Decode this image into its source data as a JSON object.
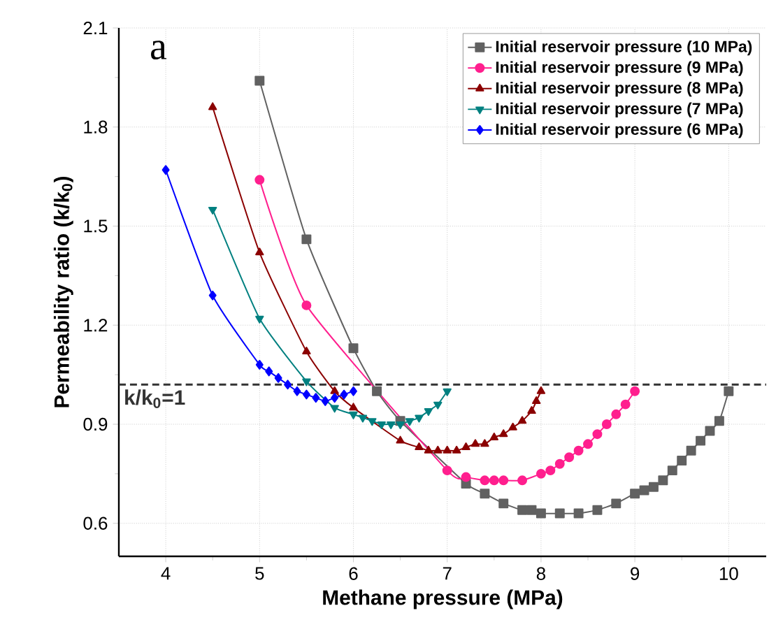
{
  "chart_data": {
    "type": "line",
    "xlabel": "Methane pressure (MPa)",
    "ylabel": "Permeability ratio (k/k$_{0}$)",
    "xlim": [
      3.5,
      10.4
    ],
    "ylim": [
      0.5,
      2.1
    ],
    "xticks": [
      4,
      5,
      6,
      7,
      8,
      9,
      10
    ],
    "yticks": [
      0.6,
      0.9,
      1.2,
      1.5,
      1.8,
      2.1
    ],
    "grid": true,
    "legend": "top right",
    "annotations": [
      "a"
    ],
    "ref_lines": [
      {
        "axis": "y",
        "value": 1.02,
        "label": "k/k$_{0}$=1",
        "color": "#333333",
        "line_style": "dashed"
      }
    ],
    "series": [
      {
        "name": "Initial reservoir pressure (10 MPa)",
        "color": "#616161",
        "marker": "square",
        "x": [
          5,
          5.5,
          6,
          6.25,
          6.5,
          7.2,
          7.4,
          7.6,
          7.8,
          7.9,
          8.0,
          8.2,
          8.4,
          8.6,
          8.8,
          9.0,
          9.1,
          9.2,
          9.3,
          9.4,
          9.5,
          9.6,
          9.7,
          9.8,
          9.9,
          10.0
        ],
        "values": [
          1.94,
          1.46,
          1.13,
          1.0,
          0.91,
          0.72,
          0.69,
          0.66,
          0.64,
          0.64,
          0.63,
          0.63,
          0.63,
          0.64,
          0.66,
          0.69,
          0.7,
          0.71,
          0.73,
          0.76,
          0.79,
          0.82,
          0.85,
          0.88,
          0.91,
          1.0
        ]
      },
      {
        "name": "Initial reservoir pressure (9 MPa)",
        "color": "#ff1f8e",
        "marker": "circle",
        "x": [
          5,
          5.5,
          7.0,
          7.2,
          7.4,
          7.5,
          7.6,
          7.8,
          8.0,
          8.1,
          8.2,
          8.3,
          8.4,
          8.5,
          8.6,
          8.7,
          8.8,
          8.9,
          9.0
        ],
        "values": [
          1.64,
          1.26,
          0.76,
          0.74,
          0.73,
          0.73,
          0.73,
          0.73,
          0.75,
          0.76,
          0.78,
          0.8,
          0.82,
          0.84,
          0.87,
          0.9,
          0.93,
          0.96,
          1.0
        ]
      },
      {
        "name": "Initial reservoir pressure (8 MPa)",
        "color": "#8b0000",
        "marker": "triangle",
        "x": [
          4.5,
          5.0,
          5.5,
          5.8,
          6.0,
          6.5,
          6.7,
          6.8,
          6.9,
          7.0,
          7.1,
          7.2,
          7.3,
          7.4,
          7.5,
          7.6,
          7.7,
          7.8,
          7.9,
          7.95,
          8.0
        ],
        "values": [
          1.86,
          1.42,
          1.12,
          1.0,
          0.95,
          0.85,
          0.83,
          0.82,
          0.82,
          0.82,
          0.82,
          0.83,
          0.84,
          0.84,
          0.86,
          0.87,
          0.89,
          0.91,
          0.94,
          0.97,
          1.0
        ]
      },
      {
        "name": "Initial reservoir pressure (7 MPa)",
        "color": "#008080",
        "marker": "triangle-down",
        "x": [
          4.5,
          5.0,
          5.5,
          5.8,
          6.0,
          6.1,
          6.2,
          6.3,
          6.4,
          6.5,
          6.6,
          6.7,
          6.8,
          6.9,
          7.0
        ],
        "values": [
          1.55,
          1.22,
          1.03,
          0.95,
          0.93,
          0.92,
          0.91,
          0.9,
          0.9,
          0.9,
          0.91,
          0.92,
          0.94,
          0.96,
          1.0
        ]
      },
      {
        "name": "Initial reservoir pressure (6 MPa)",
        "color": "#0000ff",
        "marker": "diamond",
        "x": [
          4.0,
          4.5,
          5.0,
          5.1,
          5.2,
          5.3,
          5.4,
          5.5,
          5.6,
          5.7,
          5.8,
          5.9,
          6.0
        ],
        "values": [
          1.67,
          1.29,
          1.08,
          1.06,
          1.04,
          1.02,
          1.0,
          0.99,
          0.98,
          0.97,
          0.98,
          0.99,
          1.0
        ]
      }
    ]
  }
}
